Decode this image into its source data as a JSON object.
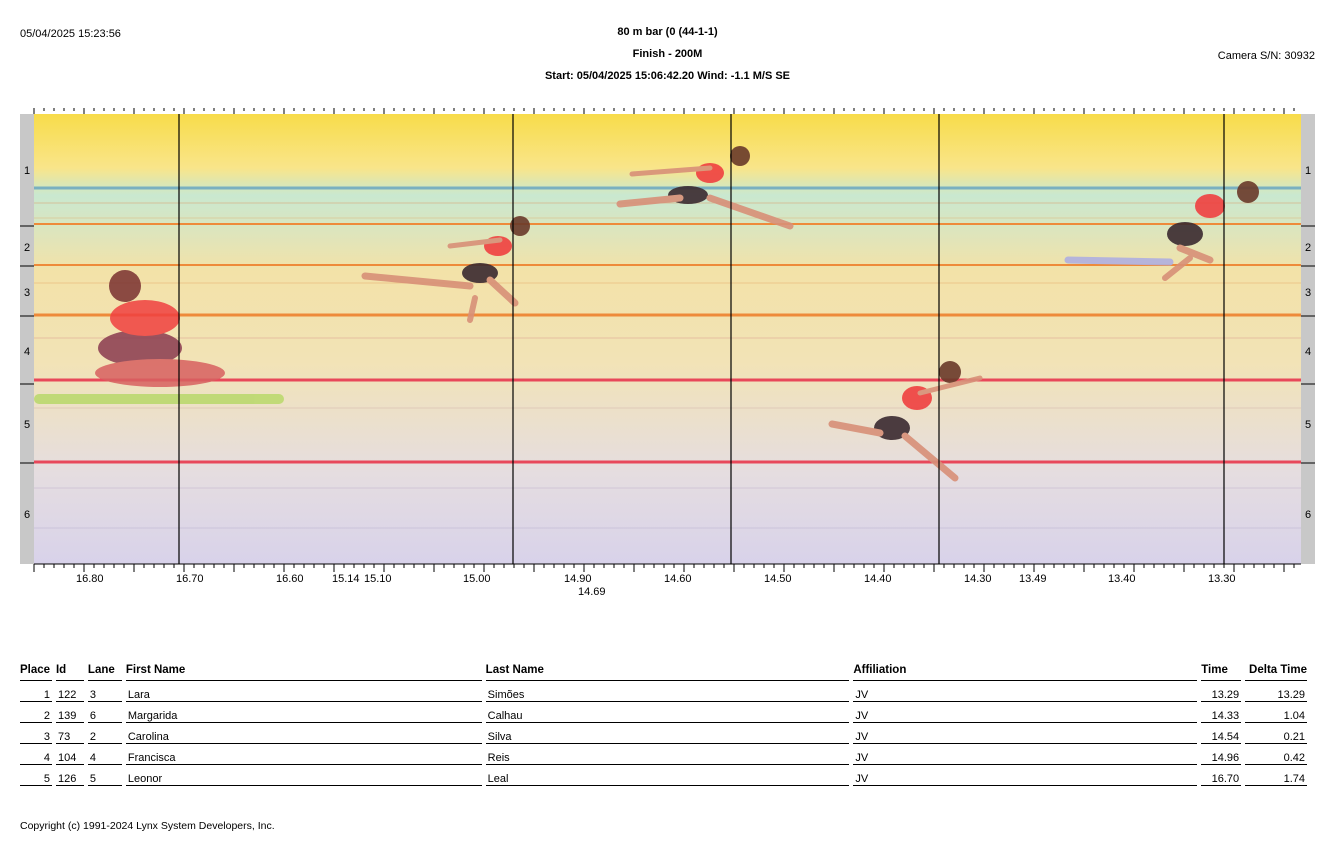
{
  "header": {
    "timestamp": "05/04/2025 15:23:56",
    "event_title": "80 m bar (0 (44-1-1)",
    "finish": "Finish - 200M",
    "start_line": "Start: 05/04/2025 15:06:42.20     Wind: -1.1 M/S SE",
    "camera": "Camera S/N: 30932"
  },
  "lanes": [
    "1",
    "2",
    "3",
    "4",
    "5",
    "6"
  ],
  "time_axis": {
    "labels": [
      "16.80",
      "16.70",
      "16.60",
      "15.14",
      "15.10",
      "15.00",
      "14.90",
      "14.69",
      "14.60",
      "14.50",
      "14.40",
      "14.30",
      "13.49",
      "13.40",
      "13.30"
    ]
  },
  "colors": {
    "lane_line_red": "#e8485a",
    "lane_line_orange": "#ee8a3a",
    "lane_line_blue": "#7ab0c0",
    "background_yellow": "#f7e06a"
  },
  "results": {
    "columns": [
      "Place",
      "Id",
      "Lane",
      "First Name",
      "Last Name",
      "Affiliation",
      "Time",
      "Delta Time"
    ],
    "rows": [
      {
        "place": "1",
        "id": "122",
        "lane": "3",
        "first": "Lara",
        "last": "Simões",
        "aff": "JV",
        "time": "13.29",
        "delta": "13.29"
      },
      {
        "place": "2",
        "id": "139",
        "lane": "6",
        "first": "Margarida",
        "last": "Calhau",
        "aff": "JV",
        "time": "14.33",
        "delta": "1.04"
      },
      {
        "place": "3",
        "id": "73",
        "lane": "2",
        "first": "Carolina",
        "last": "Silva",
        "aff": "JV",
        "time": "14.54",
        "delta": "0.21"
      },
      {
        "place": "4",
        "id": "104",
        "lane": "4",
        "first": "Francisca",
        "last": "Reis",
        "aff": "JV",
        "time": "14.96",
        "delta": "0.42"
      },
      {
        "place": "5",
        "id": "126",
        "lane": "5",
        "first": "Leonor",
        "last": "Leal",
        "aff": "JV",
        "time": "16.70",
        "delta": "1.74"
      }
    ]
  },
  "footer": {
    "copyright": "Copyright (c) 1991-2024 Lynx System Developers, Inc."
  }
}
